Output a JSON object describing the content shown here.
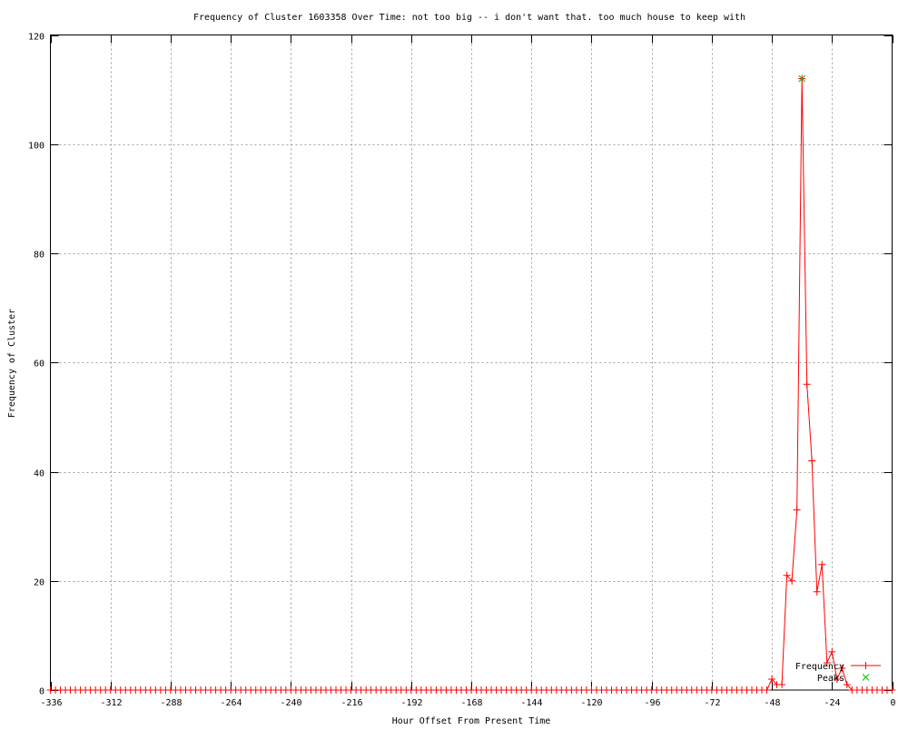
{
  "chart_data": {
    "type": "line",
    "title": "Frequency of Cluster 1603358 Over Time: not too big -- i don't want that. too much house to keep with",
    "xlabel": "Hour Offset From Present Time",
    "ylabel": "Frequency of Cluster",
    "xlim": [
      -336,
      0
    ],
    "ylim": [
      0,
      120
    ],
    "xticks": [
      -336,
      -312,
      -288,
      -264,
      -240,
      -216,
      -192,
      -168,
      -144,
      -120,
      -96,
      -72,
      -48,
      -24,
      0
    ],
    "yticks": [
      0,
      20,
      40,
      60,
      80,
      100,
      120
    ],
    "grid": true,
    "legend_position": "bottom-right",
    "series": [
      {
        "name": "Frequency",
        "color": "#ff0000",
        "marker": "plus",
        "x": [
          -336,
          -334,
          -332,
          -330,
          -328,
          -326,
          -324,
          -322,
          -320,
          -318,
          -316,
          -314,
          -312,
          -310,
          -308,
          -306,
          -304,
          -302,
          -300,
          -298,
          -296,
          -294,
          -292,
          -290,
          -288,
          -286,
          -284,
          -282,
          -280,
          -278,
          -276,
          -274,
          -272,
          -270,
          -268,
          -266,
          -264,
          -262,
          -260,
          -258,
          -256,
          -254,
          -252,
          -250,
          -248,
          -246,
          -244,
          -242,
          -240,
          -238,
          -236,
          -234,
          -232,
          -230,
          -228,
          -226,
          -224,
          -222,
          -220,
          -218,
          -216,
          -214,
          -212,
          -210,
          -208,
          -206,
          -204,
          -202,
          -200,
          -198,
          -196,
          -194,
          -192,
          -190,
          -188,
          -186,
          -184,
          -182,
          -180,
          -178,
          -176,
          -174,
          -172,
          -170,
          -168,
          -166,
          -164,
          -162,
          -160,
          -158,
          -156,
          -154,
          -152,
          -150,
          -148,
          -146,
          -144,
          -142,
          -140,
          -138,
          -136,
          -134,
          -132,
          -130,
          -128,
          -126,
          -124,
          -122,
          -120,
          -118,
          -116,
          -114,
          -112,
          -110,
          -108,
          -106,
          -104,
          -102,
          -100,
          -98,
          -96,
          -94,
          -92,
          -90,
          -88,
          -86,
          -84,
          -82,
          -80,
          -78,
          -76,
          -74,
          -72,
          -70,
          -68,
          -66,
          -64,
          -62,
          -60,
          -58,
          -56,
          -54,
          -52,
          -50,
          -48,
          -46,
          -44,
          -42,
          -40,
          -38,
          -36,
          -34,
          -32,
          -30,
          -28,
          -26,
          -24,
          -22,
          -20,
          -18,
          -16,
          -14,
          -12,
          -10,
          -8,
          -6,
          -4,
          -2,
          0
        ],
        "y": [
          0,
          0,
          0,
          0,
          0,
          0,
          0,
          0,
          0,
          0,
          0,
          0,
          0,
          0,
          0,
          0,
          0,
          0,
          0,
          0,
          0,
          0,
          0,
          0,
          0,
          0,
          0,
          0,
          0,
          0,
          0,
          0,
          0,
          0,
          0,
          0,
          0,
          0,
          0,
          0,
          0,
          0,
          0,
          0,
          0,
          0,
          0,
          0,
          0,
          0,
          0,
          0,
          0,
          0,
          0,
          0,
          0,
          0,
          0,
          0,
          0,
          0,
          0,
          0,
          0,
          0,
          0,
          0,
          0,
          0,
          0,
          0,
          0,
          0,
          0,
          0,
          0,
          0,
          0,
          0,
          0,
          0,
          0,
          0,
          0,
          0,
          0,
          0,
          0,
          0,
          0,
          0,
          0,
          0,
          0,
          0,
          0,
          0,
          0,
          0,
          0,
          0,
          0,
          0,
          0,
          0,
          0,
          0,
          0,
          0,
          0,
          0,
          0,
          0,
          0,
          0,
          0,
          0,
          0,
          0,
          0,
          0,
          0,
          0,
          0,
          0,
          0,
          0,
          0,
          0,
          0,
          0,
          0,
          0,
          0,
          0,
          0,
          0,
          0,
          0,
          0,
          0,
          0,
          0,
          2,
          1,
          1,
          21,
          20,
          33,
          112,
          56,
          42,
          18,
          23,
          5,
          7,
          2,
          4,
          1,
          0,
          0,
          0,
          0,
          0,
          0,
          0,
          0,
          0
        ]
      },
      {
        "name": "Peaks",
        "color": "#00c000",
        "marker": "cross",
        "x": [
          -36
        ],
        "y": [
          112
        ]
      }
    ]
  }
}
